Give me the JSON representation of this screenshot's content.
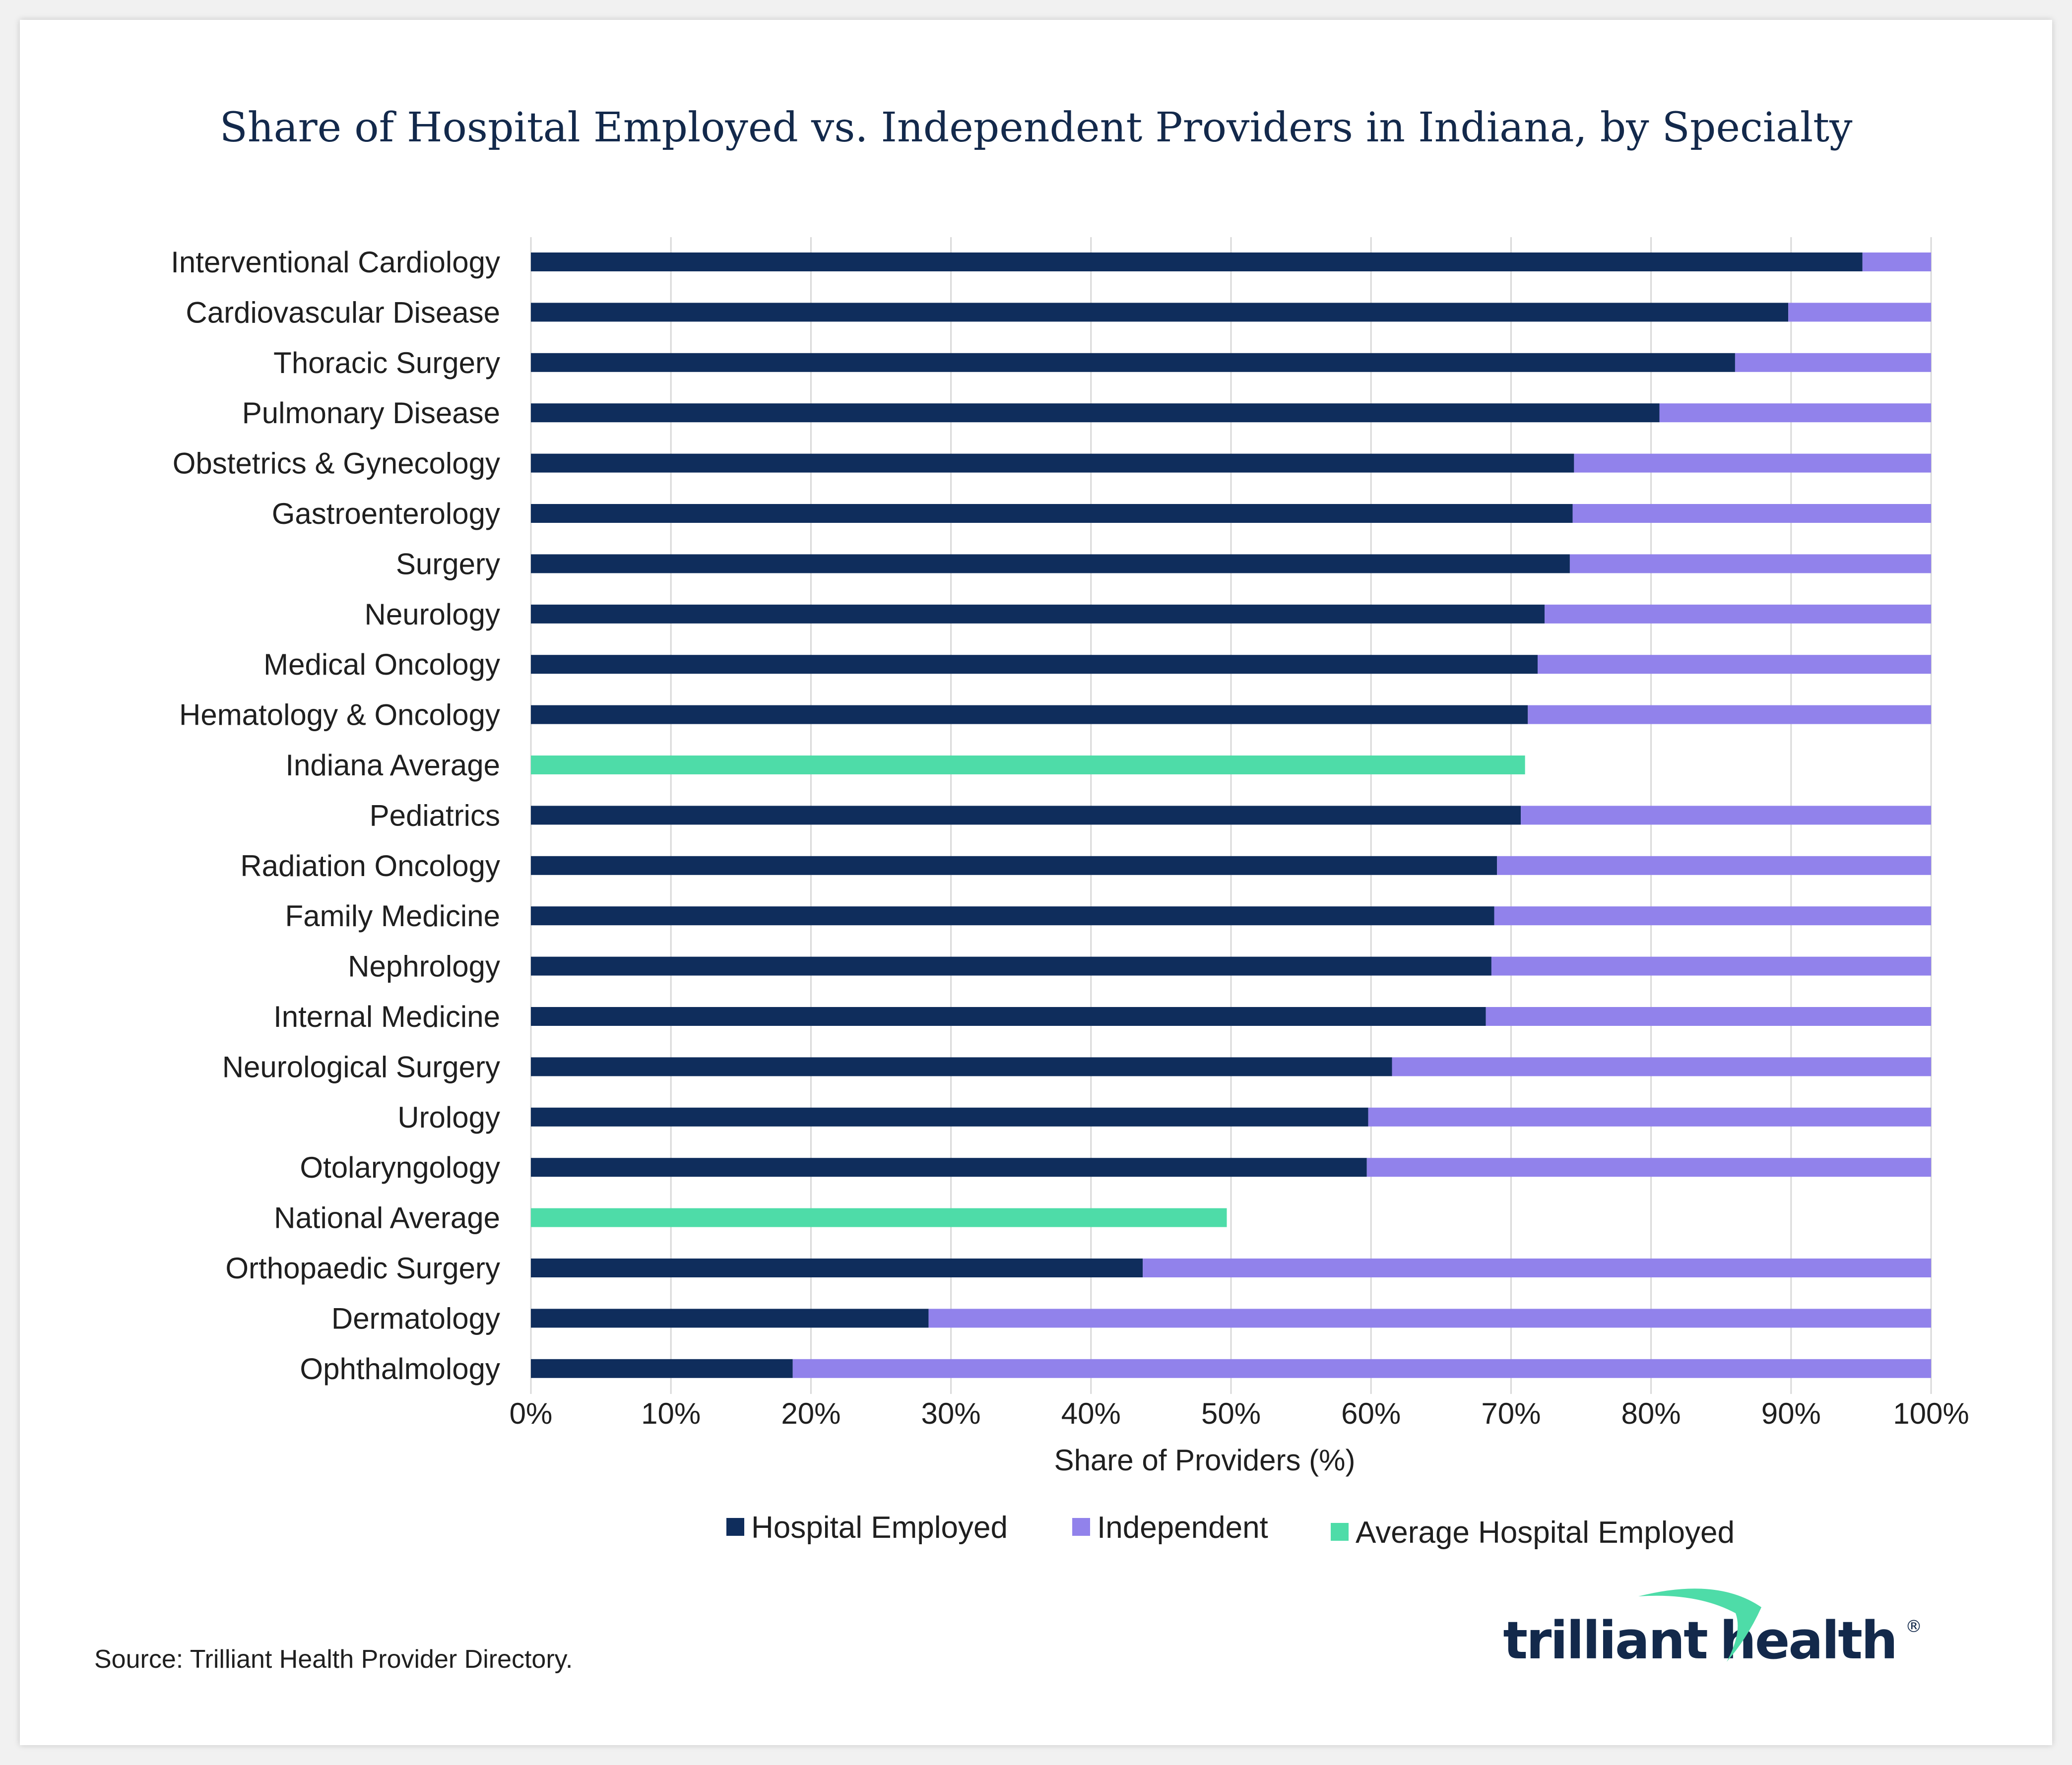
{
  "chart_data": {
    "type": "bar",
    "orientation": "horizontal",
    "stacked": true,
    "title": "Share of Hospital Employed vs. Independent Providers in Indiana, by Specialty",
    "xlabel": "Share of Providers (%)",
    "ylabel": "",
    "xlim": [
      0,
      100
    ],
    "xticks": [
      "0%",
      "10%",
      "20%",
      "30%",
      "40%",
      "50%",
      "60%",
      "70%",
      "80%",
      "90%",
      "100%"
    ],
    "grid": "vertical",
    "legend_position": "bottom",
    "categories": [
      "Interventional Cardiology",
      "Cardiovascular Disease",
      "Thoracic Surgery",
      "Pulmonary Disease",
      "Obstetrics & Gynecology",
      "Gastroenterology",
      "Surgery",
      "Neurology",
      "Medical Oncology",
      "Hematology & Oncology",
      "Indiana Average",
      "Pediatrics",
      "Radiation Oncology",
      "Family Medicine",
      "Nephrology",
      "Internal Medicine",
      "Neurological Surgery",
      "Urology",
      "Otolaryngology",
      "National Average",
      "Orthopaedic Surgery",
      "Dermatology",
      "Ophthalmology"
    ],
    "series": [
      {
        "name": "Hospital Employed",
        "color": "#0f2d5c",
        "values": [
          95.1,
          89.8,
          86.0,
          80.6,
          74.5,
          74.4,
          74.2,
          72.4,
          71.9,
          71.2,
          null,
          70.7,
          69.0,
          68.8,
          68.6,
          68.2,
          61.5,
          59.8,
          59.7,
          null,
          43.7,
          28.4,
          18.7
        ]
      },
      {
        "name": "Independent",
        "color": "#9182eb",
        "values": [
          4.9,
          10.2,
          14.0,
          19.4,
          25.5,
          25.6,
          25.8,
          27.6,
          28.1,
          28.8,
          null,
          29.3,
          31.0,
          31.2,
          31.4,
          31.8,
          38.5,
          40.2,
          40.3,
          null,
          56.3,
          71.6,
          81.3
        ]
      },
      {
        "name": "Average Hospital Employed",
        "color": "#4edca8",
        "values": [
          null,
          null,
          null,
          null,
          null,
          null,
          null,
          null,
          null,
          null,
          71.0,
          null,
          null,
          null,
          null,
          null,
          null,
          null,
          null,
          49.7,
          null,
          null,
          null
        ]
      }
    ]
  },
  "footer": {
    "source": "Source: Trilliant Health Provider Directory.",
    "logo_part1": "trilliant",
    "logo_part2": "health",
    "logo_mark": "®"
  },
  "colors": {
    "hospital_employed": "#0f2d5c",
    "independent": "#9182eb",
    "average": "#4edca8",
    "grid": "#d9d9d9",
    "logo_swoosh": "#4edca8"
  }
}
